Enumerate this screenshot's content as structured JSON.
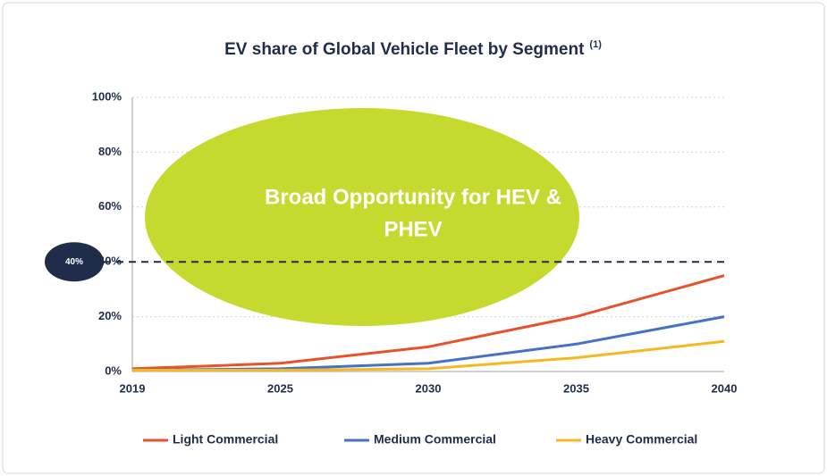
{
  "chart_data": {
    "type": "line",
    "title": "EV share of Global Vehicle Fleet by Segment",
    "title_note": "(1)",
    "categories": [
      "2019",
      "2025",
      "2030",
      "2035",
      "2040"
    ],
    "series": [
      {
        "name": "Light Commercial",
        "color": "#e8522a",
        "values": [
          1,
          3,
          9,
          20,
          35
        ]
      },
      {
        "name": "Medium Commercial",
        "color": "#4472c4",
        "values": [
          0.5,
          1,
          3,
          10,
          20
        ]
      },
      {
        "name": "Heavy Commercial",
        "color": "#f5b820",
        "values": [
          0.5,
          0.5,
          1,
          5,
          11
        ]
      }
    ],
    "ylim": [
      0,
      100
    ],
    "yticks": [
      {
        "value": 0,
        "label": "0%"
      },
      {
        "value": 20,
        "label": "20%"
      },
      {
        "value": 40,
        "label": "40%"
      },
      {
        "value": 60,
        "label": "60%"
      },
      {
        "value": 80,
        "label": "80%"
      },
      {
        "value": 100,
        "label": "100%"
      }
    ],
    "grid": true,
    "legend": "bottom",
    "reference_line": {
      "value": 40,
      "label": "40%",
      "color": "#1f2d4a"
    },
    "annotation": {
      "lines": [
        "Broad Opportunity for HEV &",
        "PHEV"
      ],
      "color": "#c6d92e"
    }
  }
}
